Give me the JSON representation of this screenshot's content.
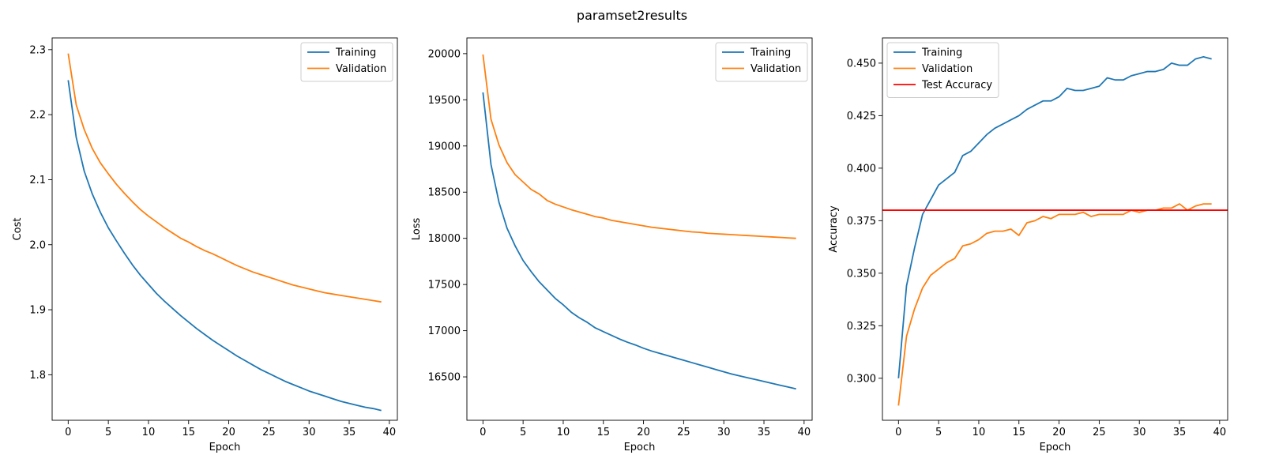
{
  "figure_title": "paramset2results",
  "colors": {
    "training": "#1f77b4",
    "validation": "#ff7f0e",
    "test": "#ff0000"
  },
  "chart_data": [
    {
      "type": "line",
      "title": "",
      "xlabel": "Epoch",
      "ylabel": "Cost",
      "xlim": [
        -2,
        41
      ],
      "ylim": [
        1.73,
        2.318
      ],
      "xticks": [
        0,
        5,
        10,
        15,
        20,
        25,
        30,
        35,
        40
      ],
      "yticks": [
        1.8,
        1.9,
        2.0,
        2.1,
        2.2,
        2.3
      ],
      "ytick_labels": [
        "1.8",
        "1.9",
        "2.0",
        "2.1",
        "2.2",
        "2.3"
      ],
      "legend": "top-right",
      "grid": false,
      "x": [
        0,
        1,
        2,
        3,
        4,
        5,
        6,
        7,
        8,
        9,
        10,
        11,
        12,
        13,
        14,
        15,
        16,
        17,
        18,
        19,
        20,
        21,
        22,
        23,
        24,
        25,
        26,
        27,
        28,
        29,
        30,
        31,
        32,
        33,
        34,
        35,
        36,
        37,
        38,
        39
      ],
      "series": [
        {
          "name": "Training",
          "color": "#1f77b4",
          "values": [
            2.253,
            2.165,
            2.113,
            2.078,
            2.05,
            2.026,
            2.006,
            1.987,
            1.969,
            1.953,
            1.939,
            1.925,
            1.913,
            1.902,
            1.891,
            1.881,
            1.871,
            1.862,
            1.853,
            1.845,
            1.837,
            1.829,
            1.822,
            1.815,
            1.808,
            1.802,
            1.796,
            1.79,
            1.785,
            1.78,
            1.775,
            1.771,
            1.767,
            1.763,
            1.759,
            1.756,
            1.753,
            1.75,
            1.748,
            1.745
          ]
        },
        {
          "name": "Validation",
          "color": "#ff7f0e",
          "values": [
            2.294,
            2.215,
            2.177,
            2.148,
            2.126,
            2.109,
            2.093,
            2.079,
            2.066,
            2.054,
            2.044,
            2.035,
            2.026,
            2.018,
            2.01,
            2.004,
            1.997,
            1.991,
            1.986,
            1.98,
            1.974,
            1.968,
            1.963,
            1.958,
            1.954,
            1.95,
            1.946,
            1.942,
            1.938,
            1.935,
            1.932,
            1.929,
            1.926,
            1.924,
            1.922,
            1.92,
            1.918,
            1.916,
            1.914,
            1.912
          ]
        }
      ]
    },
    {
      "type": "line",
      "title": "",
      "xlabel": "Epoch",
      "ylabel": "Loss",
      "xlim": [
        -2,
        41
      ],
      "ylim": [
        16030,
        20170
      ],
      "xticks": [
        0,
        5,
        10,
        15,
        20,
        25,
        30,
        35,
        40
      ],
      "yticks": [
        16500,
        17000,
        17500,
        18000,
        18500,
        19000,
        19500,
        20000
      ],
      "ytick_labels": [
        "16500",
        "17000",
        "17500",
        "18000",
        "18500",
        "19000",
        "19500",
        "20000"
      ],
      "legend": "top-right",
      "grid": false,
      "x": [
        0,
        1,
        2,
        3,
        4,
        5,
        6,
        7,
        8,
        9,
        10,
        11,
        12,
        13,
        14,
        15,
        16,
        17,
        18,
        19,
        20,
        21,
        22,
        23,
        24,
        25,
        26,
        27,
        28,
        29,
        30,
        31,
        32,
        33,
        34,
        35,
        36,
        37,
        38,
        39
      ],
      "series": [
        {
          "name": "Training",
          "color": "#1f77b4",
          "values": [
            19580,
            18800,
            18390,
            18110,
            17920,
            17760,
            17640,
            17530,
            17440,
            17350,
            17280,
            17200,
            17140,
            17090,
            17030,
            16990,
            16950,
            16910,
            16875,
            16845,
            16810,
            16780,
            16755,
            16730,
            16705,
            16680,
            16655,
            16630,
            16605,
            16580,
            16555,
            16530,
            16510,
            16490,
            16470,
            16450,
            16430,
            16410,
            16390,
            16370
          ]
        },
        {
          "name": "Validation",
          "color": "#ff7f0e",
          "values": [
            19990,
            19290,
            19010,
            18820,
            18690,
            18610,
            18530,
            18480,
            18410,
            18370,
            18340,
            18310,
            18285,
            18260,
            18235,
            18220,
            18195,
            18180,
            18165,
            18150,
            18135,
            18120,
            18110,
            18100,
            18090,
            18080,
            18070,
            18065,
            18055,
            18050,
            18045,
            18040,
            18035,
            18030,
            18025,
            18020,
            18015,
            18010,
            18005,
            18000
          ]
        }
      ]
    },
    {
      "type": "line",
      "title": "",
      "xlabel": "Epoch",
      "ylabel": "Accuracy",
      "xlim": [
        -2,
        41
      ],
      "ylim": [
        0.28,
        0.462
      ],
      "xticks": [
        0,
        5,
        10,
        15,
        20,
        25,
        30,
        35,
        40
      ],
      "yticks": [
        0.3,
        0.325,
        0.35,
        0.375,
        0.4,
        0.425,
        0.45
      ],
      "ytick_labels": [
        "0.300",
        "0.325",
        "0.350",
        "0.375",
        "0.400",
        "0.425",
        "0.450"
      ],
      "legend": "top-left",
      "grid": false,
      "x": [
        0,
        1,
        2,
        3,
        4,
        5,
        6,
        7,
        8,
        9,
        10,
        11,
        12,
        13,
        14,
        15,
        16,
        17,
        18,
        19,
        20,
        21,
        22,
        23,
        24,
        25,
        26,
        27,
        28,
        29,
        30,
        31,
        32,
        33,
        34,
        35,
        36,
        37,
        38,
        39
      ],
      "series": [
        {
          "name": "Training",
          "color": "#1f77b4",
          "values": [
            0.3,
            0.344,
            0.362,
            0.378,
            0.385,
            0.392,
            0.395,
            0.398,
            0.406,
            0.408,
            0.412,
            0.416,
            0.419,
            0.421,
            0.423,
            0.425,
            0.428,
            0.43,
            0.432,
            0.432,
            0.434,
            0.438,
            0.437,
            0.437,
            0.438,
            0.439,
            0.443,
            0.442,
            0.442,
            0.444,
            0.445,
            0.446,
            0.446,
            0.447,
            0.45,
            0.449,
            0.449,
            0.452,
            0.453,
            0.452
          ]
        },
        {
          "name": "Validation",
          "color": "#ff7f0e",
          "values": [
            0.287,
            0.32,
            0.333,
            0.343,
            0.349,
            0.352,
            0.355,
            0.357,
            0.363,
            0.364,
            0.366,
            0.369,
            0.37,
            0.37,
            0.371,
            0.368,
            0.374,
            0.375,
            0.377,
            0.376,
            0.378,
            0.378,
            0.378,
            0.379,
            0.377,
            0.378,
            0.378,
            0.378,
            0.378,
            0.38,
            0.379,
            0.38,
            0.38,
            0.381,
            0.381,
            0.383,
            0.38,
            0.382,
            0.383,
            0.383
          ]
        }
      ],
      "hlines": [
        {
          "name": "Test Accuracy",
          "color": "#ff0000",
          "y": 0.38
        }
      ]
    }
  ]
}
